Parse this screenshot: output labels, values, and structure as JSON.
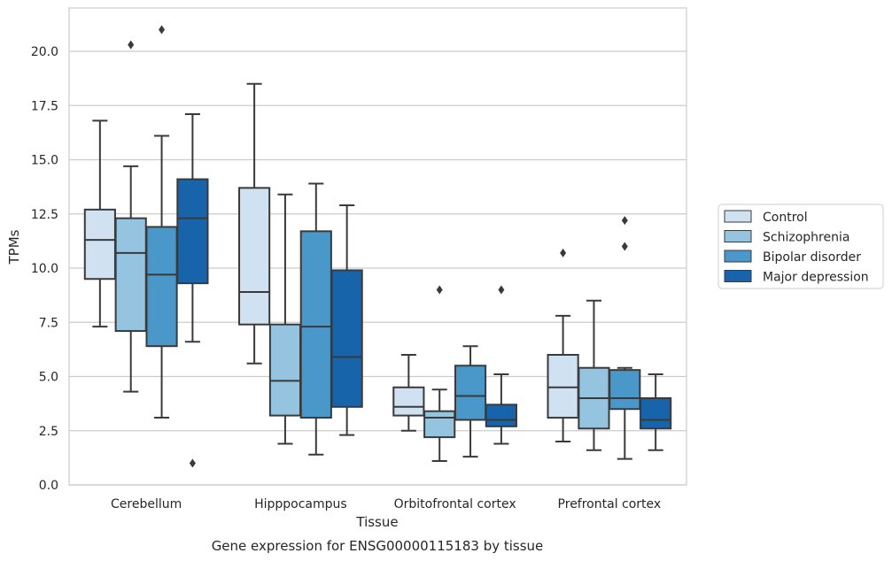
{
  "chart_data": {
    "type": "box",
    "title": "",
    "caption": "Gene expression for ENSG00000115183 by tissue",
    "xlabel": "Tissue",
    "ylabel": "TPMs",
    "ylim": [
      0,
      22
    ],
    "yticks": [
      "0.0",
      "2.5",
      "5.0",
      "7.5",
      "10.0",
      "12.5",
      "15.0",
      "17.5",
      "20.0"
    ],
    "grid": "horizontal",
    "legend_position": "right",
    "categories": [
      "Cerebellum",
      "Hipppocampus",
      "Orbitofrontal cortex",
      "Prefrontal cortex"
    ],
    "series": [
      {
        "name": "Control",
        "color": "#d0e1f2",
        "boxes": [
          {
            "whislo": 7.3,
            "q1": 9.5,
            "med": 11.3,
            "q3": 12.7,
            "whishi": 16.8,
            "fliers": []
          },
          {
            "whislo": 5.6,
            "q1": 7.4,
            "med": 8.9,
            "q3": 13.7,
            "whishi": 18.5,
            "fliers": []
          },
          {
            "whislo": 2.5,
            "q1": 3.2,
            "med": 3.6,
            "q3": 4.5,
            "whishi": 6.0,
            "fliers": []
          },
          {
            "whislo": 2.0,
            "q1": 3.1,
            "med": 4.5,
            "q3": 6.0,
            "whishi": 7.8,
            "fliers": [
              10.7
            ]
          }
        ]
      },
      {
        "name": "Schizophrenia",
        "color": "#94c4df",
        "boxes": [
          {
            "whislo": 4.3,
            "q1": 7.1,
            "med": 10.7,
            "q3": 12.3,
            "whishi": 14.7,
            "fliers": [
              20.3
            ]
          },
          {
            "whislo": 1.9,
            "q1": 3.2,
            "med": 4.8,
            "q3": 7.4,
            "whishi": 13.4,
            "fliers": []
          },
          {
            "whislo": 1.1,
            "q1": 2.2,
            "med": 3.1,
            "q3": 3.4,
            "whishi": 4.4,
            "fliers": [
              9.0
            ]
          },
          {
            "whislo": 1.6,
            "q1": 2.6,
            "med": 4.0,
            "q3": 5.4,
            "whishi": 8.5,
            "fliers": []
          }
        ]
      },
      {
        "name": "Bipolar disorder",
        "color": "#4a98c9",
        "boxes": [
          {
            "whislo": 3.1,
            "q1": 6.4,
            "med": 9.7,
            "q3": 11.9,
            "whishi": 16.1,
            "fliers": [
              21.0
            ]
          },
          {
            "whislo": 1.4,
            "q1": 3.1,
            "med": 7.3,
            "q3": 11.7,
            "whishi": 13.9,
            "fliers": []
          },
          {
            "whislo": 1.3,
            "q1": 3.0,
            "med": 4.1,
            "q3": 5.5,
            "whishi": 6.4,
            "fliers": []
          },
          {
            "whislo": 1.2,
            "q1": 3.5,
            "med": 4.0,
            "q3": 5.3,
            "whishi": 5.4,
            "fliers": [
              11.0,
              12.2
            ]
          }
        ]
      },
      {
        "name": "Major depression",
        "color": "#1764ab",
        "boxes": [
          {
            "whislo": 6.6,
            "q1": 9.3,
            "med": 12.3,
            "q3": 14.1,
            "whishi": 17.1,
            "fliers": [
              1.0
            ]
          },
          {
            "whislo": 2.3,
            "q1": 3.6,
            "med": 5.9,
            "q3": 9.9,
            "whishi": 12.9,
            "fliers": []
          },
          {
            "whislo": 1.9,
            "q1": 2.7,
            "med": 3.0,
            "q3": 3.7,
            "whishi": 5.1,
            "fliers": [
              9.0
            ]
          },
          {
            "whislo": 1.6,
            "q1": 2.6,
            "med": 3.0,
            "q3": 4.0,
            "whishi": 5.1,
            "fliers": []
          }
        ]
      }
    ]
  }
}
